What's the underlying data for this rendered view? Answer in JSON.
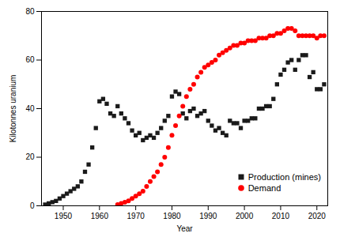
{
  "chart_data": {
    "type": "scatter",
    "xlabel": "Year",
    "ylabel": "Kilotonnes uranium",
    "series": [
      {
        "name": "Production (mines)",
        "color": "#1a1a1a",
        "marker": "square",
        "x": [
          1945,
          1946,
          1947,
          1948,
          1949,
          1950,
          1951,
          1952,
          1953,
          1954,
          1955,
          1956,
          1957,
          1958,
          1959,
          1960,
          1961,
          1962,
          1963,
          1964,
          1965,
          1966,
          1967,
          1968,
          1969,
          1970,
          1971,
          1972,
          1973,
          1974,
          1975,
          1976,
          1977,
          1978,
          1979,
          1980,
          1981,
          1982,
          1983,
          1984,
          1985,
          1986,
          1987,
          1988,
          1989,
          1990,
          1991,
          1992,
          1993,
          1994,
          1995,
          1996,
          1997,
          1998,
          1999,
          2000,
          2001,
          2002,
          2003,
          2004,
          2005,
          2006,
          2007,
          2008,
          2009,
          2010,
          2011,
          2012,
          2013,
          2014,
          2015,
          2016,
          2017,
          2018,
          2019,
          2020,
          2021,
          2022
        ],
        "values": [
          0.5,
          1,
          1.5,
          2,
          3,
          4,
          5,
          6,
          7,
          8,
          10,
          14,
          17,
          24,
          32,
          43,
          44,
          42,
          38,
          37,
          41,
          38,
          36,
          34,
          31,
          29,
          30,
          27,
          28,
          29,
          28,
          30,
          32,
          35,
          37,
          45,
          47,
          46,
          38,
          36,
          39,
          40,
          37,
          38,
          39,
          35,
          33,
          31,
          32,
          30,
          29,
          35,
          34,
          34,
          32,
          35,
          35,
          36,
          36,
          40,
          40,
          41,
          41,
          44,
          50,
          54,
          56,
          59,
          60,
          56,
          60,
          62,
          62,
          53,
          55,
          48,
          48,
          50
        ]
      },
      {
        "name": "Demand",
        "color": "#ff0000",
        "marker": "circle",
        "x": [
          1965,
          1966,
          1967,
          1968,
          1969,
          1970,
          1971,
          1972,
          1973,
          1974,
          1975,
          1976,
          1977,
          1978,
          1979,
          1980,
          1981,
          1982,
          1983,
          1984,
          1985,
          1986,
          1987,
          1988,
          1989,
          1990,
          1991,
          1992,
          1993,
          1994,
          1995,
          1996,
          1997,
          1998,
          1999,
          2000,
          2001,
          2002,
          2003,
          2004,
          2005,
          2006,
          2007,
          2008,
          2009,
          2010,
          2011,
          2012,
          2013,
          2014,
          2015,
          2016,
          2017,
          2018,
          2019,
          2020,
          2021,
          2022
        ],
        "values": [
          0.5,
          1,
          1.5,
          2,
          3,
          4,
          5,
          6,
          8,
          10,
          12,
          14,
          17,
          20,
          24,
          29,
          33,
          37,
          41,
          45,
          48,
          50,
          53,
          55,
          57,
          58,
          59,
          60,
          62,
          63,
          64,
          65,
          66,
          66,
          67,
          67,
          68,
          68,
          68,
          69,
          69,
          69,
          70,
          70,
          71,
          71,
          72,
          73,
          73,
          72,
          70,
          70,
          70,
          70,
          70,
          69,
          70,
          70
        ]
      }
    ],
    "xlim": [
      1944,
      2023
    ],
    "ylim": [
      0,
      80
    ],
    "xticks": [
      1950,
      1960,
      1970,
      1980,
      1990,
      2000,
      2010,
      2020
    ],
    "yticks": [
      0,
      20,
      40,
      60,
      80
    ],
    "legend": "lower right",
    "grid": false
  }
}
